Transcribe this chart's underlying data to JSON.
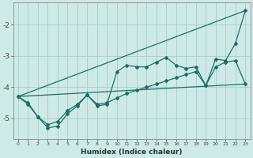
{
  "background_color": "#ceeae6",
  "grid_color": "#a8ccc8",
  "line_color": "#1e6e64",
  "xlabel": "Humidex (Indice chaleur)",
  "xlim": [
    -0.5,
    23.5
  ],
  "ylim": [
    -5.65,
    -1.3
  ],
  "yticks": [
    -5,
    -4,
    -3,
    -2
  ],
  "xticks": [
    0,
    1,
    2,
    3,
    4,
    5,
    6,
    7,
    8,
    9,
    10,
    11,
    12,
    13,
    14,
    15,
    16,
    17,
    18,
    19,
    20,
    21,
    22,
    23
  ],
  "line1_x": [
    0,
    1,
    2,
    3,
    4,
    5,
    6,
    7,
    8,
    9,
    10,
    11,
    12,
    13,
    14,
    15,
    16,
    17,
    18,
    19,
    20,
    21,
    22,
    23
  ],
  "line1_y": [
    -4.3,
    -4.5,
    -4.95,
    -5.3,
    -5.25,
    -4.85,
    -4.6,
    -4.25,
    -4.6,
    -4.55,
    -3.5,
    -3.3,
    -3.35,
    -3.35,
    -3.2,
    -3.05,
    -3.3,
    -3.4,
    -3.35,
    -3.95,
    -3.1,
    -3.15,
    -2.6,
    -1.55
  ],
  "line2_x": [
    0,
    23
  ],
  "line2_y": [
    -4.3,
    -1.55
  ],
  "line3_x": [
    0,
    1,
    2,
    3,
    4,
    5,
    6,
    7,
    8,
    9,
    10,
    11,
    12,
    13,
    14,
    15,
    16,
    17,
    18,
    19,
    20,
    21,
    22,
    23
  ],
  "line3_y": [
    -4.3,
    -4.55,
    -4.95,
    -5.2,
    -5.1,
    -4.75,
    -4.55,
    -4.25,
    -4.55,
    -4.5,
    -4.35,
    -4.2,
    -4.1,
    -4.0,
    -3.9,
    -3.8,
    -3.7,
    -3.6,
    -3.5,
    -3.95,
    -3.35,
    -3.2,
    -3.15,
    -3.9
  ],
  "line4_x": [
    0,
    23
  ],
  "line4_y": [
    -4.3,
    -3.9
  ]
}
